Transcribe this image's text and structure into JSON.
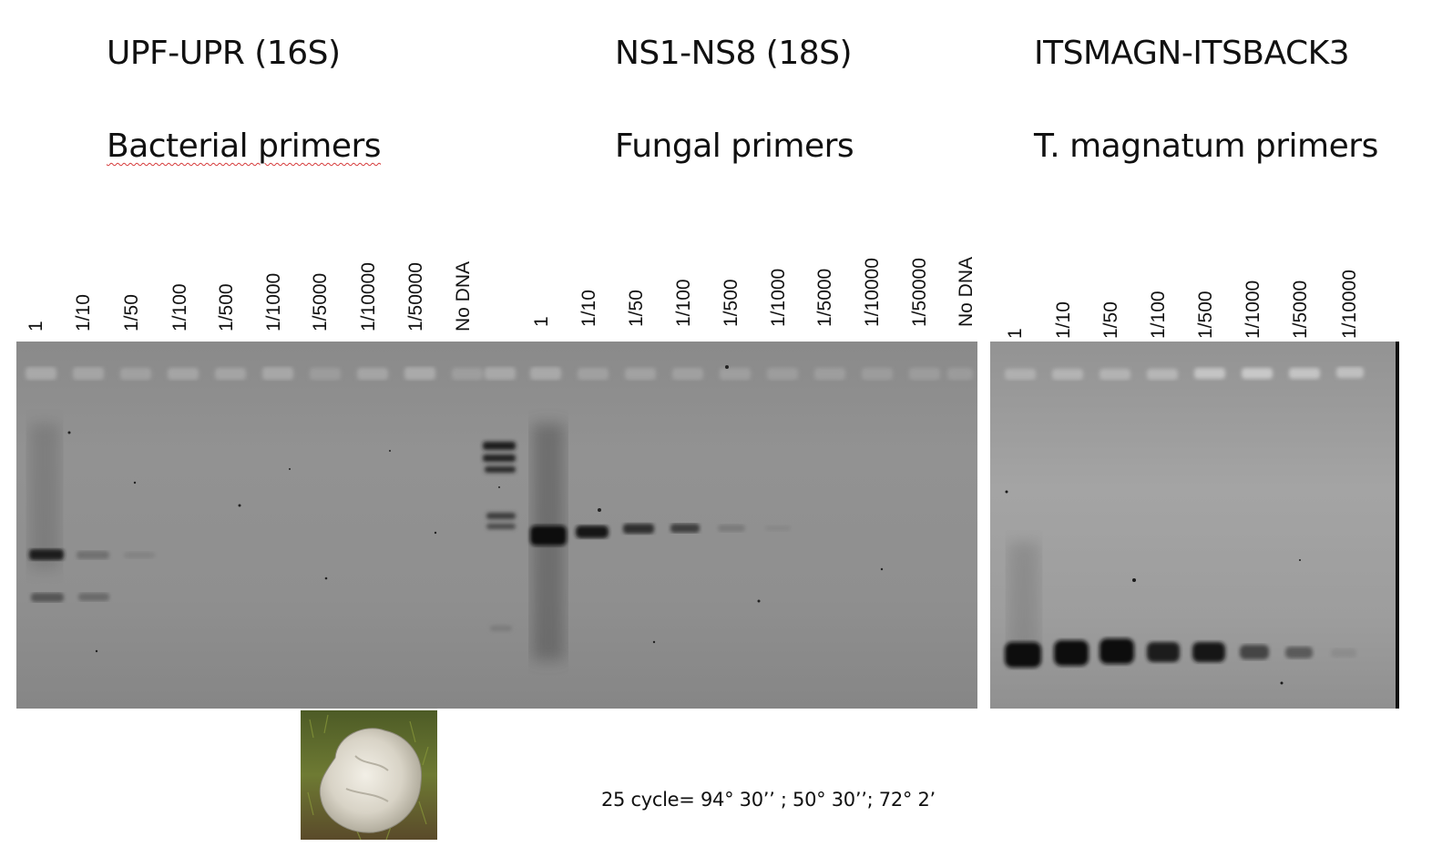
{
  "groups": [
    {
      "primer_pair": "UPF-UPR (16S)",
      "description": "Bacterial primers",
      "lanes": [
        "1",
        "1/10",
        "1/50",
        "1/100",
        "1/500",
        "1/1000",
        "1/5000",
        "1/10000",
        "1/50000",
        "No DNA"
      ]
    },
    {
      "primer_pair": "NS1-NS8 (18S)",
      "description": "Fungal primers",
      "lanes": [
        "1",
        "1/10",
        "1/50",
        "1/100",
        "1/500",
        "1/1000",
        "1/5000",
        "1/10000",
        "1/50000",
        "No DNA"
      ]
    },
    {
      "primer_pair": "ITSMAGN-ITSBACK3",
      "description": "T. magnatum primers",
      "lanes": [
        "1",
        "1/10",
        "1/50",
        "1/100",
        "1/500",
        "1/1000",
        "1/5000",
        "1/10000"
      ]
    }
  ],
  "band_intensity": {
    "bacterial": [
      0.85,
      0.3,
      0.1,
      0.04,
      0.0,
      0.0,
      0.0,
      0.0,
      0.0,
      0.0
    ],
    "fungal": [
      1.0,
      0.95,
      0.7,
      0.55,
      0.2,
      0.05,
      0.0,
      0.0,
      0.0,
      0.0
    ],
    "t_magnatum": [
      1.0,
      1.0,
      1.0,
      0.85,
      0.9,
      0.55,
      0.4,
      0.15
    ]
  },
  "pcr_conditions": "25 cycle= 94° 30’’ ; 50° 30’’; 72° 2’",
  "colors": {
    "gel_background": "#8e8e8e",
    "band": "#111111",
    "underline_spellcheck": "#d63a3a"
  }
}
